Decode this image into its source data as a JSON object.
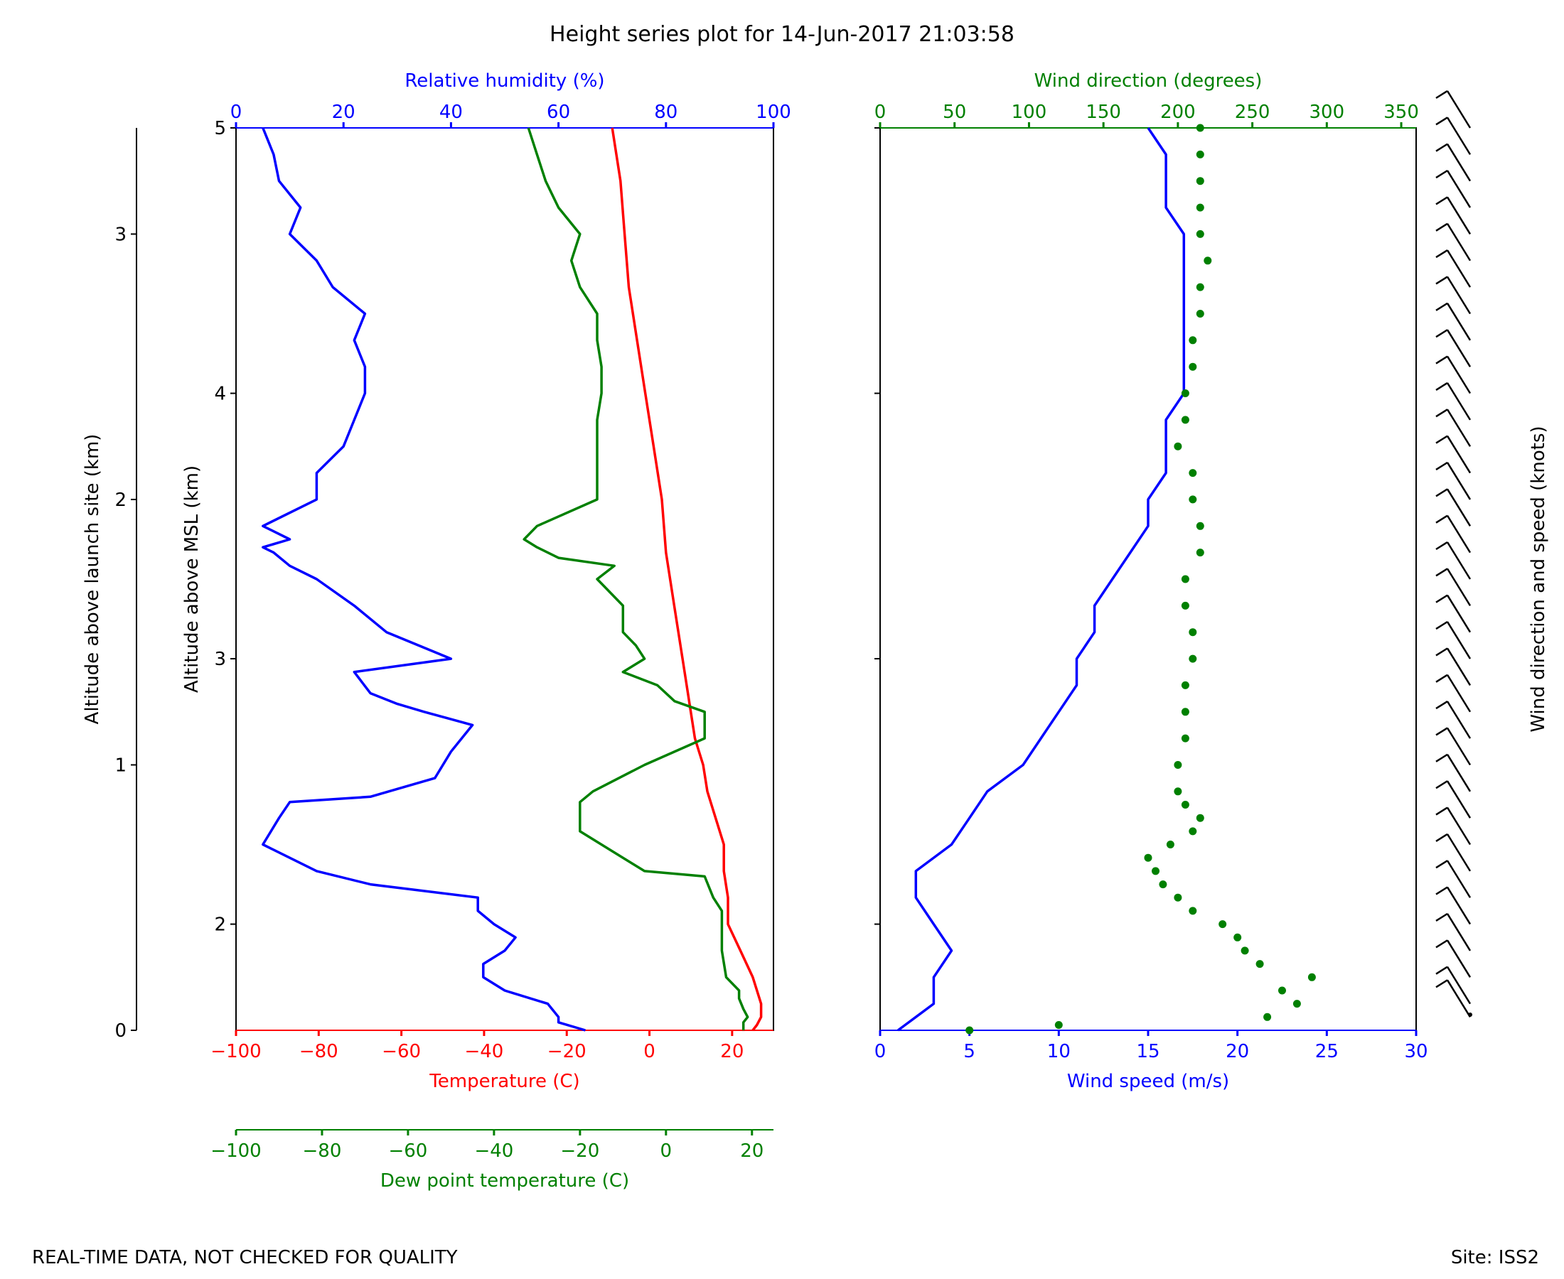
{
  "figure": {
    "title": "Height series plot for 14-Jun-2017 21:03:58",
    "footer_left": "REAL-TIME DATA, NOT CHECKED FOR QUALITY",
    "footer_right": "Site: ISS2"
  },
  "colors": {
    "temperature": "#ff0000",
    "dewpoint": "#008000",
    "rh": "#0000ff",
    "wind_speed": "#0000ff",
    "wind_dir": "#008000",
    "axis": "#000000"
  },
  "chart_data": [
    {
      "type": "line",
      "panel": "thermo",
      "y_axes": {
        "msl": {
          "label": "Altitude above MSL (km)",
          "lim": [
            1.6,
            5.0
          ],
          "ticks": [
            2,
            3,
            4,
            5
          ],
          "tick_labels": [
            "2",
            "3",
            "4",
            "5"
          ]
        },
        "launch": {
          "label": "Altitude above launch site (km)",
          "ticks": [
            0,
            1,
            2,
            3
          ],
          "tick_labels": [
            "0",
            "1",
            "2",
            "3"
          ]
        }
      },
      "x_axes": {
        "temperature": {
          "label": "Temperature (C)",
          "lim": [
            -100,
            30
          ],
          "ticks": [
            -100,
            -80,
            -60,
            -40,
            -20,
            0,
            20
          ],
          "tick_labels": [
            "−100",
            "−80",
            "−60",
            "−40",
            "−20",
            "0",
            "20"
          ]
        },
        "dewpoint": {
          "label": "Dew point temperature (C)",
          "lim": [
            -100,
            25
          ],
          "ticks": [
            -100,
            -80,
            -60,
            -40,
            -20,
            0,
            20
          ],
          "tick_labels": [
            "−100",
            "−80",
            "−60",
            "−40",
            "−20",
            "0",
            "20"
          ]
        },
        "rh": {
          "label": "Relative humidity (%)",
          "lim": [
            0,
            100
          ],
          "ticks": [
            0,
            20,
            40,
            60,
            80,
            100
          ],
          "tick_labels": [
            "0",
            "20",
            "40",
            "60",
            "80",
            "100"
          ]
        }
      },
      "series": [
        {
          "name": "Temperature (C)",
          "axis": "temperature",
          "y": [
            1.6,
            1.62,
            1.65,
            1.7,
            1.8,
            1.9,
            2.0,
            2.1,
            2.2,
            2.3,
            2.4,
            2.5,
            2.6,
            2.7,
            2.8,
            2.9,
            3.0,
            3.2,
            3.4,
            3.6,
            3.8,
            4.0,
            4.2,
            4.4,
            4.6,
            4.8,
            5.0
          ],
          "x": [
            25,
            26,
            27,
            27,
            25,
            22,
            19,
            19,
            18,
            18,
            16,
            14,
            13,
            11,
            10,
            9,
            8,
            6,
            4,
            3,
            1,
            -1,
            -3,
            -5,
            -6,
            -7,
            -9
          ]
        },
        {
          "name": "Dew point temperature (C)",
          "axis": "dewpoint",
          "y": [
            1.6,
            1.63,
            1.65,
            1.68,
            1.72,
            1.75,
            1.8,
            1.9,
            2.0,
            2.05,
            2.1,
            2.18,
            2.2,
            2.25,
            2.35,
            2.43,
            2.46,
            2.5,
            2.6,
            2.7,
            2.75,
            2.8,
            2.84,
            2.9,
            2.95,
            3.0,
            3.05,
            3.1,
            3.2,
            3.3,
            3.35,
            3.38,
            3.42,
            3.45,
            3.5,
            3.6,
            3.7,
            3.8,
            3.9,
            4.0,
            4.1,
            4.2,
            4.3,
            4.4,
            4.5,
            4.6,
            4.7,
            4.8,
            4.9,
            5.0
          ],
          "x": [
            18,
            18,
            19,
            18,
            17,
            17,
            14,
            13,
            13,
            13,
            11,
            9,
            -5,
            -10,
            -20,
            -20,
            -20,
            -17,
            -5,
            9,
            9,
            9,
            2,
            -2,
            -10,
            -5,
            -7,
            -10,
            -10,
            -16,
            -12,
            -25,
            -30,
            -33,
            -30,
            -16,
            -16,
            -16,
            -16,
            -15,
            -15,
            -16,
            -16,
            -20,
            -22,
            -20,
            -25,
            -28,
            -30,
            -32
          ]
        },
        {
          "name": "Relative humidity (%)",
          "axis": "rh",
          "y": [
            1.6,
            1.63,
            1.65,
            1.7,
            1.75,
            1.8,
            1.85,
            1.9,
            1.95,
            2.0,
            2.05,
            2.1,
            2.15,
            2.2,
            2.3,
            2.4,
            2.46,
            2.48,
            2.55,
            2.65,
            2.75,
            2.8,
            2.83,
            2.87,
            2.95,
            3.0,
            3.1,
            3.2,
            3.3,
            3.35,
            3.4,
            3.42,
            3.45,
            3.5,
            3.6,
            3.7,
            3.8,
            3.9,
            4.0,
            4.1,
            4.2,
            4.3,
            4.4,
            4.5,
            4.6,
            4.7,
            4.8,
            4.9,
            5.0
          ],
          "x": [
            65,
            60,
            60,
            58,
            50,
            46,
            46,
            50,
            52,
            48,
            45,
            45,
            25,
            15,
            5,
            8,
            10,
            25,
            37,
            40,
            44,
            35,
            30,
            25,
            22,
            40,
            28,
            22,
            15,
            10,
            7,
            5,
            10,
            5,
            15,
            15,
            20,
            22,
            24,
            24,
            22,
            24,
            18,
            15,
            10,
            12,
            8,
            7,
            5
          ]
        }
      ]
    },
    {
      "type": "line",
      "panel": "wind",
      "y_axes": {
        "msl": {
          "lim": [
            1.6,
            5.0
          ],
          "ticks": [
            2,
            3,
            4,
            5
          ]
        }
      },
      "x_axes": {
        "wind_speed": {
          "label": "Wind speed (m/s)",
          "lim": [
            0,
            30
          ],
          "ticks": [
            0,
            5,
            10,
            15,
            20,
            25,
            30
          ],
          "tick_labels": [
            "0",
            "5",
            "10",
            "15",
            "20",
            "25",
            "30"
          ]
        },
        "wind_dir": {
          "label": "Wind direction (degrees)",
          "lim": [
            0,
            360
          ],
          "ticks": [
            0,
            50,
            100,
            150,
            200,
            250,
            300,
            350
          ],
          "tick_labels": [
            "0",
            "50",
            "100",
            "150",
            "200",
            "250",
            "300",
            "350"
          ]
        }
      },
      "series": [
        {
          "name": "Wind speed (m/s)",
          "axis": "wind_speed",
          "style": "line",
          "y": [
            1.6,
            1.65,
            1.7,
            1.8,
            1.9,
            2.0,
            2.1,
            2.2,
            2.3,
            2.4,
            2.5,
            2.6,
            2.7,
            2.8,
            2.9,
            3.0,
            3.1,
            3.2,
            3.3,
            3.4,
            3.5,
            3.6,
            3.7,
            3.8,
            3.9,
            4.0,
            4.1,
            4.2,
            4.3,
            4.4,
            4.5,
            4.6,
            4.7,
            4.8,
            4.9,
            5.0
          ],
          "x": [
            1,
            2,
            3,
            3,
            4,
            3,
            2,
            2,
            4,
            5,
            6,
            8,
            9,
            10,
            11,
            11,
            12,
            12,
            13,
            14,
            15,
            15,
            16,
            16,
            16,
            17,
            17,
            17,
            17,
            17,
            17,
            17,
            16,
            16,
            16,
            15
          ]
        },
        {
          "name": "Wind direction (degrees)",
          "axis": "wind_dir",
          "style": "scatter",
          "y": [
            1.6,
            1.62,
            1.65,
            1.7,
            1.75,
            1.8,
            1.85,
            1.9,
            1.95,
            2.0,
            2.05,
            2.1,
            2.15,
            2.2,
            2.25,
            2.3,
            2.35,
            2.4,
            2.45,
            2.5,
            2.6,
            2.7,
            2.8,
            2.9,
            3.0,
            3.1,
            3.2,
            3.3,
            3.4,
            3.5,
            3.6,
            3.7,
            3.8,
            3.9,
            4.0,
            4.1,
            4.2,
            4.3,
            4.4,
            4.5,
            4.6,
            4.7,
            4.8,
            4.9,
            5.0
          ],
          "x": [
            60,
            120,
            260,
            280,
            270,
            290,
            255,
            245,
            240,
            230,
            210,
            200,
            190,
            185,
            180,
            195,
            210,
            215,
            205,
            200,
            200,
            205,
            205,
            205,
            210,
            210,
            205,
            205,
            215,
            215,
            210,
            210,
            200,
            205,
            205,
            210,
            210,
            215,
            215,
            220,
            215,
            215,
            215,
            215,
            215
          ]
        }
      ],
      "barbs": {
        "label": "Wind direction and speed (knots)"
      }
    }
  ]
}
